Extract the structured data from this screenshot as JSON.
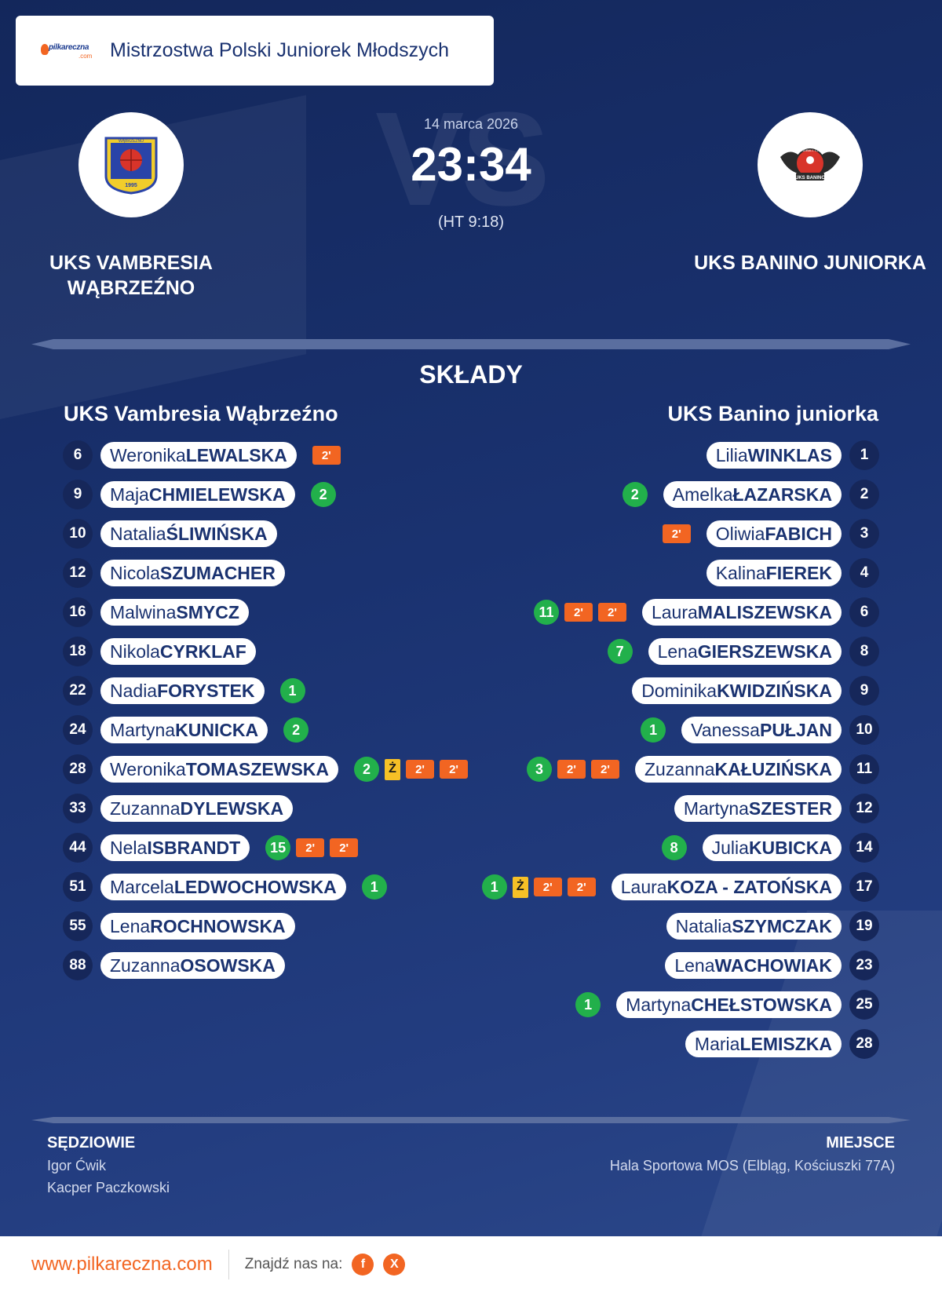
{
  "competition": {
    "brand_name": "pilkareczna",
    "brand_domain": ".com",
    "title": "Mistrzostwa Polski Juniorek Młodszych"
  },
  "match": {
    "date": "14 marca 2026",
    "score": "23:34",
    "halftime": "(HT 9:18)",
    "vs_label": "VS",
    "home_team_display": "UKS VAMBRESIA WĄBRZEŹNO",
    "away_team_display": "UKS BANINO JUNIORKA"
  },
  "crests": {
    "home_text_top": "WĄBRZEŹNO",
    "home_text_year": "1995",
    "away_text_top": "HANDBALL CLUB",
    "away_text_bottom": "UKS BANINO"
  },
  "squads": {
    "heading": "SKŁADY",
    "home": {
      "title": "UKS Vambresia Wąbrzeźno",
      "players": [
        {
          "num": "6",
          "first": "Weronika",
          "last": "LEWALSKA",
          "events": [
            {
              "type": "pen",
              "label": "2'"
            }
          ]
        },
        {
          "num": "9",
          "first": "Maja",
          "last": "CHMIELEWSKA",
          "events": [
            {
              "type": "goal",
              "label": "2"
            }
          ]
        },
        {
          "num": "10",
          "first": "Natalia",
          "last": "ŚLIWIŃSKA",
          "events": []
        },
        {
          "num": "12",
          "first": "Nicola",
          "last": "SZUMACHER",
          "events": []
        },
        {
          "num": "16",
          "first": "Malwina",
          "last": "SMYCZ",
          "events": []
        },
        {
          "num": "18",
          "first": "Nikola",
          "last": "CYRKLAF",
          "events": []
        },
        {
          "num": "22",
          "first": "Nadia",
          "last": "FORYSTEK",
          "events": [
            {
              "type": "goal",
              "label": "1"
            }
          ]
        },
        {
          "num": "24",
          "first": "Martyna",
          "last": "KUNICKA",
          "events": [
            {
              "type": "goal",
              "label": "2"
            }
          ]
        },
        {
          "num": "28",
          "first": "Weronika",
          "last": "TOMASZEWSKA",
          "events": [
            {
              "type": "goal",
              "label": "2"
            },
            {
              "type": "yel",
              "label": "Ż"
            },
            {
              "type": "pen",
              "label": "2'"
            },
            {
              "type": "pen",
              "label": "2'"
            }
          ]
        },
        {
          "num": "33",
          "first": "Zuzanna",
          "last": "DYLEWSKA",
          "events": []
        },
        {
          "num": "44",
          "first": "Nela",
          "last": "ISBRANDT",
          "events": [
            {
              "type": "goal",
              "label": "15"
            },
            {
              "type": "pen",
              "label": "2'"
            },
            {
              "type": "pen",
              "label": "2'"
            }
          ]
        },
        {
          "num": "51",
          "first": "Marcela",
          "last": "LEDWOCHOWSKA",
          "events": [
            {
              "type": "goal",
              "label": "1"
            }
          ]
        },
        {
          "num": "55",
          "first": "Lena",
          "last": "ROCHNOWSKA",
          "events": []
        },
        {
          "num": "88",
          "first": "Zuzanna",
          "last": "OSOWSKA",
          "events": []
        }
      ]
    },
    "away": {
      "title": "UKS Banino juniorka",
      "players": [
        {
          "num": "1",
          "first": "Lilia",
          "last": "WINKLAS",
          "events": []
        },
        {
          "num": "2",
          "first": "Amelka",
          "last": "ŁAZARSKA",
          "events": [
            {
              "type": "goal",
              "label": "2"
            }
          ]
        },
        {
          "num": "3",
          "first": "Oliwia",
          "last": "FABICH",
          "events": [
            {
              "type": "pen",
              "label": "2'"
            }
          ]
        },
        {
          "num": "4",
          "first": "Kalina",
          "last": "FIEREK",
          "events": []
        },
        {
          "num": "6",
          "first": "Laura",
          "last": "MALISZEWSKA",
          "events": [
            {
              "type": "goal",
              "label": "11"
            },
            {
              "type": "pen",
              "label": "2'"
            },
            {
              "type": "pen",
              "label": "2'"
            }
          ]
        },
        {
          "num": "8",
          "first": "Lena",
          "last": "GIERSZEWSKA",
          "events": [
            {
              "type": "goal",
              "label": "7"
            }
          ]
        },
        {
          "num": "9",
          "first": "Dominika",
          "last": "KWIDZIŃSKA",
          "events": []
        },
        {
          "num": "10",
          "first": "Vanessa",
          "last": "PUŁJAN",
          "events": [
            {
              "type": "goal",
              "label": "1"
            }
          ]
        },
        {
          "num": "11",
          "first": "Zuzanna",
          "last": "KAŁUZIŃSKA",
          "events": [
            {
              "type": "goal",
              "label": "3"
            },
            {
              "type": "pen",
              "label": "2'"
            },
            {
              "type": "pen",
              "label": "2'"
            }
          ]
        },
        {
          "num": "12",
          "first": "Martyna",
          "last": "SZESTER",
          "events": []
        },
        {
          "num": "14",
          "first": "Julia",
          "last": "KUBICKA",
          "events": [
            {
              "type": "goal",
              "label": "8"
            }
          ]
        },
        {
          "num": "17",
          "first": "Laura",
          "last": "KOZA - ZATOŃSKA",
          "events": [
            {
              "type": "goal",
              "label": "1"
            },
            {
              "type": "yel",
              "label": "Ż"
            },
            {
              "type": "pen",
              "label": "2'"
            },
            {
              "type": "pen",
              "label": "2'"
            }
          ]
        },
        {
          "num": "19",
          "first": "Natalia",
          "last": "SZYMCZAK",
          "events": []
        },
        {
          "num": "23",
          "first": "Lena",
          "last": "WACHOWIAK",
          "events": []
        },
        {
          "num": "25",
          "first": "Martyna",
          "last": "CHEŁSTOWSKA",
          "events": [
            {
              "type": "goal",
              "label": "1"
            }
          ]
        },
        {
          "num": "28",
          "first": "Maria",
          "last": "LEMISZKA",
          "events": []
        }
      ]
    }
  },
  "officials": {
    "heading": "SĘDZIOWIE",
    "referees": [
      "Igor Ćwik",
      "Kacper Paczkowski"
    ]
  },
  "venue": {
    "heading": "MIEJSCE",
    "text": "Hala Sportowa MOS (Elbląg, Kościuszki 77A)"
  },
  "footer": {
    "site": "www.pilkareczna.com",
    "find_us": "Znajdź nas na:",
    "social": [
      {
        "icon": "facebook-icon",
        "glyph": "f"
      },
      {
        "icon": "x-icon",
        "glyph": "X"
      }
    ]
  },
  "colors": {
    "background": "#1a3270",
    "accent": "#f26522",
    "goal": "#22b04b",
    "yellow_card": "#f6c026",
    "number_circle": "#16275a"
  }
}
